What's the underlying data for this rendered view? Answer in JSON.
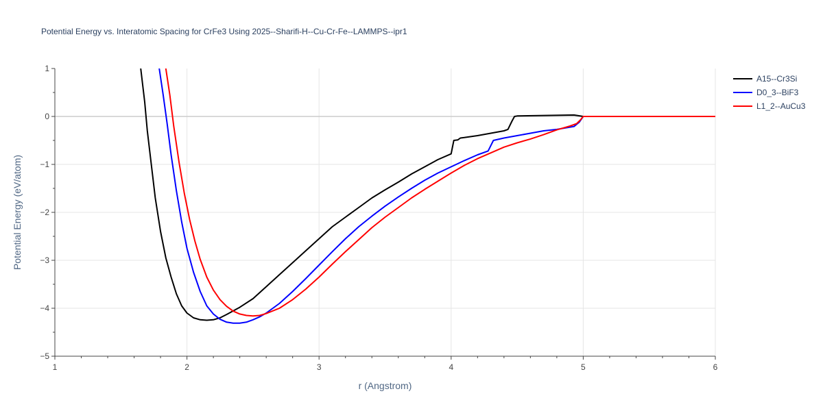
{
  "chart_data": {
    "type": "line",
    "title": "Potential Energy vs. Interatomic Spacing for CrFe3 Using 2025--Sharifi-H--Cu-Cr-Fe--LAMMPS--ipr1",
    "xlabel": "r (Angstrom)",
    "ylabel": "Potential Energy (eV/atom)",
    "xlim": [
      1,
      6
    ],
    "ylim": [
      -5,
      1
    ],
    "xticks": [
      1,
      2,
      3,
      4,
      5,
      6
    ],
    "xtick_labels": [
      "1",
      "2",
      "3",
      "4",
      "5",
      "6"
    ],
    "yticks": [
      -5,
      -4,
      -3,
      -2,
      -1,
      0,
      1
    ],
    "ytick_labels": [
      "−5",
      "−4",
      "−3",
      "−2",
      "−1",
      "0",
      "1"
    ],
    "grid": true,
    "legend_position": "top-right outside",
    "series": [
      {
        "name": "A15--Cr3Si",
        "color": "#000000",
        "points": [
          [
            1.65,
            1.0
          ],
          [
            1.68,
            0.3
          ],
          [
            1.7,
            -0.3
          ],
          [
            1.73,
            -1.0
          ],
          [
            1.76,
            -1.7
          ],
          [
            1.8,
            -2.4
          ],
          [
            1.84,
            -2.95
          ],
          [
            1.88,
            -3.35
          ],
          [
            1.92,
            -3.7
          ],
          [
            1.96,
            -3.95
          ],
          [
            2.0,
            -4.1
          ],
          [
            2.05,
            -4.2
          ],
          [
            2.1,
            -4.24
          ],
          [
            2.15,
            -4.25
          ],
          [
            2.2,
            -4.24
          ],
          [
            2.25,
            -4.2
          ],
          [
            2.3,
            -4.13
          ],
          [
            2.4,
            -3.98
          ],
          [
            2.5,
            -3.8
          ],
          [
            2.6,
            -3.55
          ],
          [
            2.7,
            -3.3
          ],
          [
            2.8,
            -3.05
          ],
          [
            2.9,
            -2.8
          ],
          [
            3.0,
            -2.55
          ],
          [
            3.1,
            -2.3
          ],
          [
            3.2,
            -2.1
          ],
          [
            3.3,
            -1.9
          ],
          [
            3.4,
            -1.7
          ],
          [
            3.5,
            -1.53
          ],
          [
            3.6,
            -1.37
          ],
          [
            3.7,
            -1.2
          ],
          [
            3.8,
            -1.05
          ],
          [
            3.9,
            -0.9
          ],
          [
            4.0,
            -0.78
          ],
          [
            4.02,
            -0.5
          ],
          [
            4.05,
            -0.49
          ],
          [
            4.07,
            -0.45
          ],
          [
            4.1,
            -0.44
          ],
          [
            4.2,
            -0.4
          ],
          [
            4.3,
            -0.35
          ],
          [
            4.4,
            -0.3
          ],
          [
            4.43,
            -0.27
          ],
          [
            4.46,
            -0.1
          ],
          [
            4.48,
            0.0
          ],
          [
            4.5,
            0.01
          ],
          [
            4.7,
            0.02
          ],
          [
            4.93,
            0.03
          ],
          [
            5.0,
            0.0
          ],
          [
            6.0,
            0.0
          ]
        ]
      },
      {
        "name": "D0_3--BiF3",
        "color": "#0000ff",
        "points": [
          [
            1.79,
            1.0
          ],
          [
            1.82,
            0.45
          ],
          [
            1.85,
            -0.15
          ],
          [
            1.88,
            -0.8
          ],
          [
            1.92,
            -1.55
          ],
          [
            1.96,
            -2.2
          ],
          [
            2.0,
            -2.75
          ],
          [
            2.05,
            -3.25
          ],
          [
            2.1,
            -3.65
          ],
          [
            2.15,
            -3.95
          ],
          [
            2.2,
            -4.12
          ],
          [
            2.25,
            -4.23
          ],
          [
            2.3,
            -4.29
          ],
          [
            2.35,
            -4.31
          ],
          [
            2.4,
            -4.31
          ],
          [
            2.45,
            -4.29
          ],
          [
            2.5,
            -4.24
          ],
          [
            2.55,
            -4.18
          ],
          [
            2.6,
            -4.1
          ],
          [
            2.7,
            -3.9
          ],
          [
            2.8,
            -3.65
          ],
          [
            2.9,
            -3.38
          ],
          [
            3.0,
            -3.1
          ],
          [
            3.1,
            -2.82
          ],
          [
            3.2,
            -2.55
          ],
          [
            3.3,
            -2.3
          ],
          [
            3.4,
            -2.08
          ],
          [
            3.5,
            -1.87
          ],
          [
            3.6,
            -1.68
          ],
          [
            3.7,
            -1.5
          ],
          [
            3.8,
            -1.33
          ],
          [
            3.9,
            -1.18
          ],
          [
            4.0,
            -1.05
          ],
          [
            4.1,
            -0.92
          ],
          [
            4.2,
            -0.8
          ],
          [
            4.28,
            -0.72
          ],
          [
            4.32,
            -0.5
          ],
          [
            4.4,
            -0.45
          ],
          [
            4.5,
            -0.4
          ],
          [
            4.6,
            -0.35
          ],
          [
            4.7,
            -0.3
          ],
          [
            4.8,
            -0.27
          ],
          [
            4.93,
            -0.21
          ],
          [
            4.97,
            -0.12
          ],
          [
            5.0,
            0.0
          ],
          [
            6.0,
            0.0
          ]
        ]
      },
      {
        "name": "L1_2--AuCu3",
        "color": "#ff0000",
        "points": [
          [
            1.84,
            1.0
          ],
          [
            1.87,
            0.45
          ],
          [
            1.9,
            -0.2
          ],
          [
            1.94,
            -0.95
          ],
          [
            1.98,
            -1.6
          ],
          [
            2.02,
            -2.15
          ],
          [
            2.06,
            -2.6
          ],
          [
            2.1,
            -2.98
          ],
          [
            2.15,
            -3.35
          ],
          [
            2.2,
            -3.62
          ],
          [
            2.25,
            -3.82
          ],
          [
            2.3,
            -3.96
          ],
          [
            2.35,
            -4.06
          ],
          [
            2.4,
            -4.12
          ],
          [
            2.45,
            -4.15
          ],
          [
            2.5,
            -4.16
          ],
          [
            2.55,
            -4.15
          ],
          [
            2.6,
            -4.11
          ],
          [
            2.7,
            -4.0
          ],
          [
            2.8,
            -3.82
          ],
          [
            2.9,
            -3.6
          ],
          [
            3.0,
            -3.35
          ],
          [
            3.1,
            -3.08
          ],
          [
            3.2,
            -2.82
          ],
          [
            3.3,
            -2.57
          ],
          [
            3.4,
            -2.32
          ],
          [
            3.5,
            -2.1
          ],
          [
            3.6,
            -1.9
          ],
          [
            3.7,
            -1.7
          ],
          [
            3.8,
            -1.52
          ],
          [
            3.9,
            -1.35
          ],
          [
            4.0,
            -1.18
          ],
          [
            4.1,
            -1.02
          ],
          [
            4.2,
            -0.88
          ],
          [
            4.3,
            -0.76
          ],
          [
            4.4,
            -0.64
          ],
          [
            4.5,
            -0.55
          ],
          [
            4.6,
            -0.47
          ],
          [
            4.7,
            -0.38
          ],
          [
            4.8,
            -0.28
          ],
          [
            4.9,
            -0.2
          ],
          [
            4.95,
            -0.15
          ],
          [
            4.98,
            -0.07
          ],
          [
            5.0,
            0.0
          ],
          [
            6.0,
            0.0
          ]
        ]
      }
    ]
  }
}
